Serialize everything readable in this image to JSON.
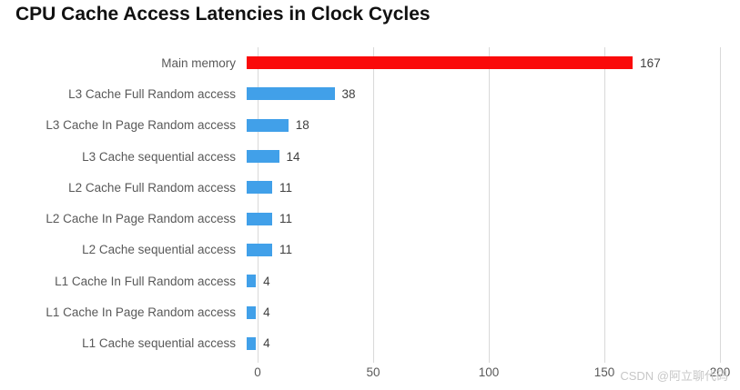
{
  "title": "CPU Cache Access Latencies in Clock Cycles",
  "watermark": "CSDN @阿立聊代码",
  "colors": {
    "highlight_bar": "#fa0a0a",
    "default_bar": "#41a0e9",
    "gridline": "#d9d9d9",
    "category_label": "#595959",
    "value_label": "#404040",
    "title_text": "#111111",
    "watermark_text": "#c7c7c7"
  },
  "chart_data": {
    "type": "bar",
    "orientation": "horizontal",
    "title": "CPU Cache Access Latencies in Clock Cycles",
    "xlabel": "",
    "ylabel": "",
    "categories": [
      "Main memory",
      "L3 Cache Full Random access",
      "L3 Cache In Page Random access",
      "L3 Cache sequential access",
      "L2 Cache Full Random access",
      "L2 Cache In Page Random access",
      "L2 Cache sequential access",
      "L1 Cache In Full Random access",
      "L1 Cache In Page Random access",
      "L1 Cache sequential access"
    ],
    "values": [
      167,
      38,
      18,
      14,
      11,
      11,
      11,
      4,
      4,
      4
    ],
    "value_labels_shown": true,
    "xlim": [
      0,
      200
    ],
    "xticks": [
      0,
      50,
      100,
      150,
      200
    ],
    "grid": true,
    "legend": false,
    "highlight_index": 0
  }
}
